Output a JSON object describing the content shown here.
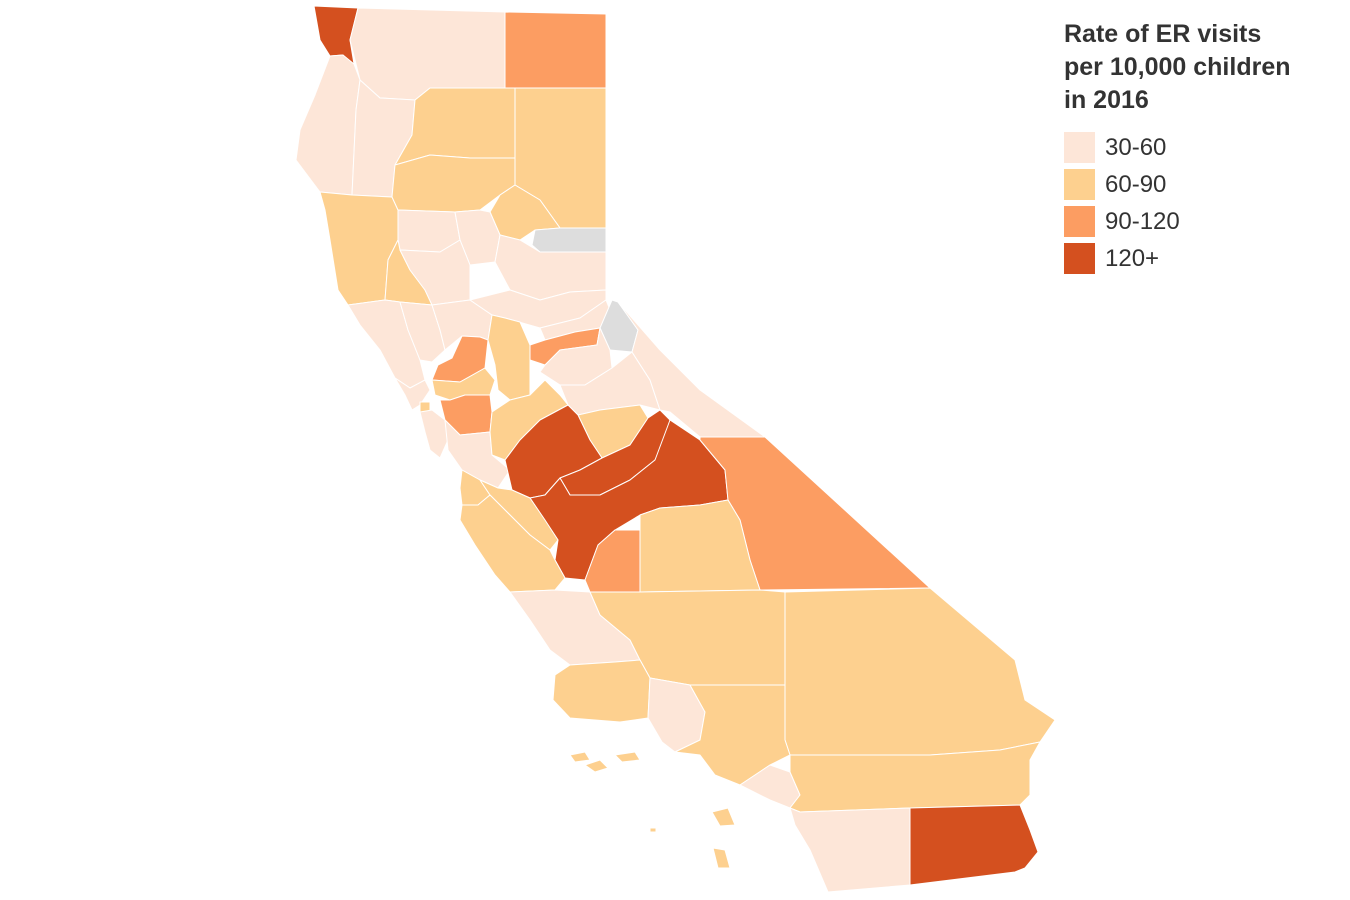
{
  "legend": {
    "title_lines": [
      "Rate of ER visits",
      "per 10,000 children",
      "in 2016"
    ],
    "items": [
      {
        "label": "30-60",
        "color": "#fde6d8"
      },
      {
        "label": "60-90",
        "color": "#fdd08f"
      },
      {
        "label": "90-120",
        "color": "#fc9d62"
      },
      {
        "label": "120+",
        "color": "#d4501f"
      }
    ],
    "no_data_color": "#dddddd"
  },
  "counties": [
    {
      "name": "del-norte",
      "bin": "120+"
    },
    {
      "name": "siskiyou",
      "bin": "30-60"
    },
    {
      "name": "modoc",
      "bin": "90-120"
    },
    {
      "name": "humboldt",
      "bin": "30-60"
    },
    {
      "name": "trinity",
      "bin": "30-60"
    },
    {
      "name": "shasta",
      "bin": "60-90"
    },
    {
      "name": "lassen",
      "bin": "60-90"
    },
    {
      "name": "mendocino",
      "bin": "60-90"
    },
    {
      "name": "tehama",
      "bin": "60-90"
    },
    {
      "name": "plumas",
      "bin": "60-90"
    },
    {
      "name": "glenn",
      "bin": "30-60"
    },
    {
      "name": "butte",
      "bin": "30-60"
    },
    {
      "name": "sierra",
      "bin": "no-data"
    },
    {
      "name": "lake",
      "bin": "60-90"
    },
    {
      "name": "colusa",
      "bin": "30-60"
    },
    {
      "name": "nevada",
      "bin": "30-60"
    },
    {
      "name": "sonoma",
      "bin": "30-60"
    },
    {
      "name": "napa",
      "bin": "30-60"
    },
    {
      "name": "yolo",
      "bin": "30-60"
    },
    {
      "name": "sacramento",
      "bin": "90-120"
    },
    {
      "name": "placer",
      "bin": "30-60"
    },
    {
      "name": "el-dorado",
      "bin": "30-60"
    },
    {
      "name": "alpine",
      "bin": "no-data"
    },
    {
      "name": "amador",
      "bin": "90-120"
    },
    {
      "name": "san-joaquin",
      "bin": "60-90"
    },
    {
      "name": "calaveras",
      "bin": "30-60"
    },
    {
      "name": "tuolumne",
      "bin": "30-60"
    },
    {
      "name": "mono",
      "bin": "30-60"
    },
    {
      "name": "marin",
      "bin": "30-60"
    },
    {
      "name": "contra-costa",
      "bin": "60-90"
    },
    {
      "name": "alameda",
      "bin": "90-120"
    },
    {
      "name": "san-francisco",
      "bin": "60-90"
    },
    {
      "name": "san-mateo",
      "bin": "30-60"
    },
    {
      "name": "santa-clara",
      "bin": "30-60"
    },
    {
      "name": "stanislaus",
      "bin": "60-90"
    },
    {
      "name": "mariposa",
      "bin": "60-90"
    },
    {
      "name": "merced",
      "bin": "120+"
    },
    {
      "name": "madera",
      "bin": "120+"
    },
    {
      "name": "fresno",
      "bin": "120+"
    },
    {
      "name": "inyo",
      "bin": "90-120"
    },
    {
      "name": "santa-cruz",
      "bin": "60-90"
    },
    {
      "name": "san-benito",
      "bin": "60-90"
    },
    {
      "name": "monterey",
      "bin": "60-90"
    },
    {
      "name": "kings",
      "bin": "90-120"
    },
    {
      "name": "tulare",
      "bin": "60-90"
    },
    {
      "name": "san-luis-obispo",
      "bin": "30-60"
    },
    {
      "name": "kern",
      "bin": "60-90"
    },
    {
      "name": "san-bernardino",
      "bin": "60-90"
    },
    {
      "name": "santa-barbara",
      "bin": "60-90"
    },
    {
      "name": "ventura",
      "bin": "30-60"
    },
    {
      "name": "los-angeles",
      "bin": "60-90"
    },
    {
      "name": "orange",
      "bin": "30-60"
    },
    {
      "name": "riverside",
      "bin": "60-90"
    },
    {
      "name": "san-diego",
      "bin": "30-60"
    },
    {
      "name": "imperial",
      "bin": "120+"
    },
    {
      "name": "channel-islands",
      "bin": "60-90"
    }
  ]
}
